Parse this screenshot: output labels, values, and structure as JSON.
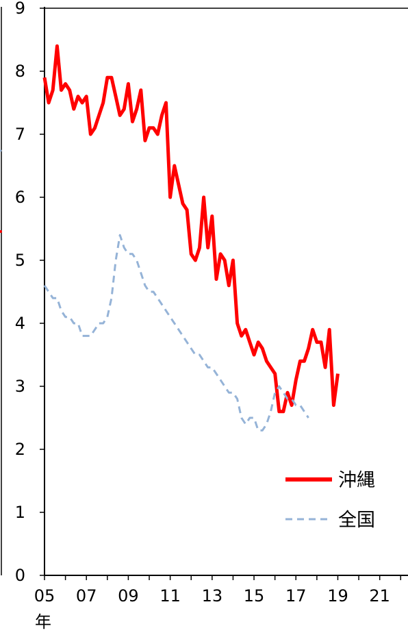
{
  "chart_data": {
    "type": "line",
    "title": "",
    "xlabel": "年",
    "ylabel": "",
    "ylim": [
      0,
      9
    ],
    "xlim": [
      2005,
      2022.35
    ],
    "yticks": [
      0,
      1,
      2,
      3,
      4,
      5,
      6,
      7,
      8,
      9
    ],
    "xticks": [
      {
        "value": 2005,
        "label": "05"
      },
      {
        "value": 2007,
        "label": "07"
      },
      {
        "value": 2009,
        "label": "09"
      },
      {
        "value": 2011,
        "label": "11"
      },
      {
        "value": 2013,
        "label": "13"
      },
      {
        "value": 2015,
        "label": "15"
      },
      {
        "value": 2017,
        "label": "17"
      },
      {
        "value": 2019,
        "label": "19"
      },
      {
        "value": 2021,
        "label": "21"
      }
    ],
    "grid": false,
    "legend": "bottom-right",
    "series": [
      {
        "name": "沖縄",
        "color": "#ff0000",
        "style": "solid",
        "points": [
          [
            2005.0,
            7.9
          ],
          [
            2005.2,
            7.5
          ],
          [
            2005.4,
            7.7
          ],
          [
            2005.6,
            8.4
          ],
          [
            2005.8,
            7.7
          ],
          [
            2006.0,
            7.8
          ],
          [
            2006.2,
            7.7
          ],
          [
            2006.4,
            7.4
          ],
          [
            2006.6,
            7.6
          ],
          [
            2006.8,
            7.5
          ],
          [
            2007.0,
            7.6
          ],
          [
            2007.2,
            7.0
          ],
          [
            2007.4,
            7.1
          ],
          [
            2007.6,
            7.3
          ],
          [
            2007.8,
            7.5
          ],
          [
            2008.0,
            7.9
          ],
          [
            2008.2,
            7.9
          ],
          [
            2008.4,
            7.6
          ],
          [
            2008.6,
            7.3
          ],
          [
            2008.8,
            7.4
          ],
          [
            2009.0,
            7.8
          ],
          [
            2009.2,
            7.2
          ],
          [
            2009.4,
            7.4
          ],
          [
            2009.6,
            7.7
          ],
          [
            2009.8,
            6.9
          ],
          [
            2010.0,
            7.1
          ],
          [
            2010.2,
            7.1
          ],
          [
            2010.4,
            7.0
          ],
          [
            2010.6,
            7.3
          ],
          [
            2010.8,
            7.5
          ],
          [
            2011.0,
            6.0
          ],
          [
            2011.2,
            6.5
          ],
          [
            2011.4,
            6.2
          ],
          [
            2011.6,
            5.9
          ],
          [
            2011.8,
            5.8
          ],
          [
            2012.0,
            5.1
          ],
          [
            2012.2,
            5.0
          ],
          [
            2012.4,
            5.2
          ],
          [
            2012.6,
            6.0
          ],
          [
            2012.8,
            5.2
          ],
          [
            2013.0,
            5.7
          ],
          [
            2013.2,
            4.7
          ],
          [
            2013.4,
            5.1
          ],
          [
            2013.6,
            5.0
          ],
          [
            2013.8,
            4.6
          ],
          [
            2014.0,
            5.0
          ],
          [
            2014.2,
            4.0
          ],
          [
            2014.4,
            3.8
          ],
          [
            2014.6,
            3.9
          ],
          [
            2014.8,
            3.7
          ],
          [
            2015.0,
            3.5
          ],
          [
            2015.2,
            3.7
          ],
          [
            2015.4,
            3.6
          ],
          [
            2015.6,
            3.4
          ],
          [
            2015.8,
            3.3
          ],
          [
            2016.0,
            3.2
          ],
          [
            2016.2,
            2.6
          ],
          [
            2016.4,
            2.6
          ],
          [
            2016.6,
            2.9
          ],
          [
            2016.8,
            2.7
          ],
          [
            2017.0,
            3.1
          ],
          [
            2017.2,
            3.4
          ],
          [
            2017.4,
            3.4
          ],
          [
            2017.6,
            3.6
          ],
          [
            2017.8,
            3.9
          ],
          [
            2018.0,
            3.7
          ],
          [
            2018.2,
            3.7
          ],
          [
            2018.4,
            3.3
          ],
          [
            2018.6,
            3.9
          ],
          [
            2018.8,
            2.7
          ],
          [
            2019.0,
            3.2
          ]
        ]
      },
      {
        "name": "全国",
        "color": "#95b3d7",
        "style": "dashed",
        "points": [
          [
            2005.0,
            4.6
          ],
          [
            2005.2,
            4.5
          ],
          [
            2005.4,
            4.4
          ],
          [
            2005.6,
            4.4
          ],
          [
            2005.8,
            4.2
          ],
          [
            2006.0,
            4.1
          ],
          [
            2006.2,
            4.1
          ],
          [
            2006.4,
            4.0
          ],
          [
            2006.6,
            4.0
          ],
          [
            2006.8,
            3.8
          ],
          [
            2007.0,
            3.8
          ],
          [
            2007.2,
            3.8
          ],
          [
            2007.4,
            3.9
          ],
          [
            2007.6,
            4.0
          ],
          [
            2007.8,
            4.0
          ],
          [
            2008.0,
            4.1
          ],
          [
            2008.2,
            4.4
          ],
          [
            2008.4,
            5.0
          ],
          [
            2008.6,
            5.4
          ],
          [
            2008.8,
            5.2
          ],
          [
            2009.0,
            5.1
          ],
          [
            2009.2,
            5.1
          ],
          [
            2009.4,
            5.0
          ],
          [
            2009.6,
            4.8
          ],
          [
            2009.8,
            4.6
          ],
          [
            2010.0,
            4.5
          ],
          [
            2010.2,
            4.5
          ],
          [
            2010.4,
            4.4
          ],
          [
            2010.6,
            4.3
          ],
          [
            2010.8,
            4.2
          ],
          [
            2011.0,
            4.1
          ],
          [
            2011.2,
            4.0
          ],
          [
            2011.4,
            3.9
          ],
          [
            2011.6,
            3.8
          ],
          [
            2011.8,
            3.7
          ],
          [
            2012.0,
            3.6
          ],
          [
            2012.2,
            3.5
          ],
          [
            2012.4,
            3.5
          ],
          [
            2012.6,
            3.4
          ],
          [
            2012.8,
            3.3
          ],
          [
            2013.0,
            3.3
          ],
          [
            2013.2,
            3.2
          ],
          [
            2013.4,
            3.1
          ],
          [
            2013.6,
            3.0
          ],
          [
            2013.8,
            2.9
          ],
          [
            2014.0,
            2.9
          ],
          [
            2014.2,
            2.8
          ],
          [
            2014.4,
            2.5
          ],
          [
            2014.6,
            2.4
          ],
          [
            2014.8,
            2.5
          ],
          [
            2015.0,
            2.5
          ],
          [
            2015.2,
            2.3
          ],
          [
            2015.4,
            2.3
          ],
          [
            2015.6,
            2.4
          ],
          [
            2015.8,
            2.6
          ],
          [
            2016.0,
            2.9
          ],
          [
            2016.2,
            3.0
          ],
          [
            2016.4,
            2.9
          ],
          [
            2016.6,
            2.8
          ],
          [
            2016.8,
            2.8
          ],
          [
            2017.0,
            2.7
          ],
          [
            2017.2,
            2.7
          ],
          [
            2017.4,
            2.6
          ],
          [
            2017.6,
            2.5
          ]
        ]
      }
    ]
  }
}
